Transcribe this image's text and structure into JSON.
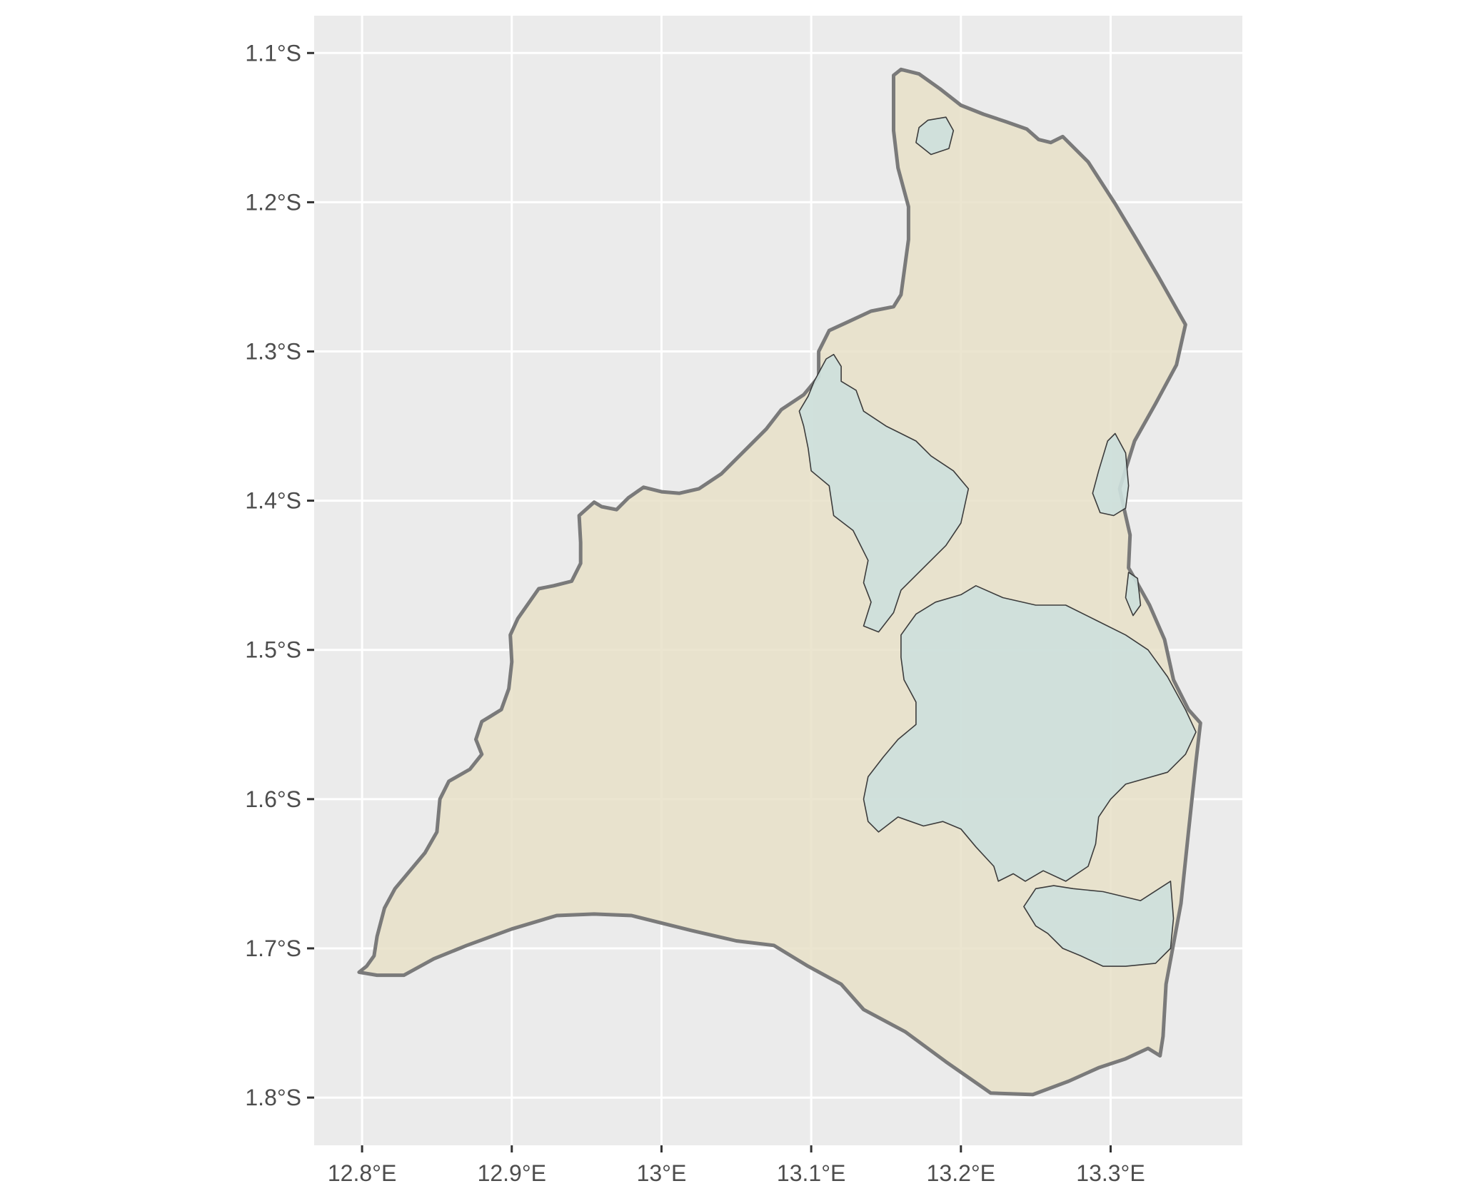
{
  "chart_data": {
    "type": "map",
    "title": "",
    "xlabel": "",
    "ylabel": "",
    "xlim": [
      12.768,
      13.388
    ],
    "ylim": [
      -1.832,
      -1.075
    ],
    "x_ticks": [
      {
        "value": 12.8,
        "label": "12.8°E"
      },
      {
        "value": 12.9,
        "label": "12.9°E"
      },
      {
        "value": 13.0,
        "label": "13°E"
      },
      {
        "value": 13.1,
        "label": "13.1°E"
      },
      {
        "value": 13.2,
        "label": "13.2°E"
      },
      {
        "value": 13.3,
        "label": "13.3°E"
      }
    ],
    "y_ticks": [
      {
        "value": -1.1,
        "label": "1.1°S"
      },
      {
        "value": -1.2,
        "label": "1.2°S"
      },
      {
        "value": -1.3,
        "label": "1.3°S"
      },
      {
        "value": -1.4,
        "label": "1.4°S"
      },
      {
        "value": -1.5,
        "label": "1.5°S"
      },
      {
        "value": -1.6,
        "label": "1.6°S"
      },
      {
        "value": -1.7,
        "label": "1.7°S"
      },
      {
        "value": -1.8,
        "label": "1.8°S"
      }
    ],
    "grid": true,
    "colors": {
      "panel_background": "#ebebeb",
      "grid": "#ffffff",
      "region_fill": "#e8e1c8",
      "region_outline": "#7a7a7a",
      "water_fill": "#cde0dd",
      "water_outline": "#3c3c3c",
      "tick_label": "#4d4d4d"
    },
    "layers": [
      {
        "name": "region-outline",
        "kind": "region",
        "coords": [
          [
            13.16,
            -1.111
          ],
          [
            13.172,
            -1.114
          ],
          [
            13.186,
            -1.124
          ],
          [
            13.2,
            -1.135
          ],
          [
            13.215,
            -1.141
          ],
          [
            13.23,
            -1.146
          ],
          [
            13.244,
            -1.151
          ],
          [
            13.252,
            -1.158
          ],
          [
            13.26,
            -1.16
          ],
          [
            13.268,
            -1.156
          ],
          [
            13.285,
            -1.173
          ],
          [
            13.303,
            -1.201
          ],
          [
            13.318,
            -1.226
          ],
          [
            13.332,
            -1.25
          ],
          [
            13.35,
            -1.282
          ],
          [
            13.344,
            -1.309
          ],
          [
            13.33,
            -1.335
          ],
          [
            13.316,
            -1.36
          ],
          [
            13.306,
            -1.392
          ],
          [
            13.31,
            -1.41
          ],
          [
            13.313,
            -1.423
          ],
          [
            13.312,
            -1.445
          ],
          [
            13.316,
            -1.452
          ],
          [
            13.326,
            -1.47
          ],
          [
            13.336,
            -1.493
          ],
          [
            13.342,
            -1.52
          ],
          [
            13.352,
            -1.54
          ],
          [
            13.36,
            -1.549
          ],
          [
            13.357,
            -1.575
          ],
          [
            13.352,
            -1.622
          ],
          [
            13.347,
            -1.67
          ],
          [
            13.337,
            -1.724
          ],
          [
            13.335,
            -1.759
          ],
          [
            13.333,
            -1.772
          ],
          [
            13.325,
            -1.767
          ],
          [
            13.31,
            -1.774
          ],
          [
            13.292,
            -1.78
          ],
          [
            13.272,
            -1.789
          ],
          [
            13.248,
            -1.798
          ],
          [
            13.22,
            -1.797
          ],
          [
            13.19,
            -1.776
          ],
          [
            13.163,
            -1.756
          ],
          [
            13.135,
            -1.741
          ],
          [
            13.12,
            -1.724
          ],
          [
            13.098,
            -1.712
          ],
          [
            13.075,
            -1.698
          ],
          [
            13.05,
            -1.695
          ],
          [
            13.02,
            -1.688
          ],
          [
            12.98,
            -1.678
          ],
          [
            12.955,
            -1.677
          ],
          [
            12.93,
            -1.678
          ],
          [
            12.9,
            -1.687
          ],
          [
            12.87,
            -1.698
          ],
          [
            12.848,
            -1.707
          ],
          [
            12.828,
            -1.718
          ],
          [
            12.81,
            -1.718
          ],
          [
            12.798,
            -1.716
          ],
          [
            12.803,
            -1.712
          ],
          [
            12.808,
            -1.705
          ],
          [
            12.81,
            -1.692
          ],
          [
            12.815,
            -1.673
          ],
          [
            12.822,
            -1.66
          ],
          [
            12.832,
            -1.648
          ],
          [
            12.842,
            -1.636
          ],
          [
            12.85,
            -1.622
          ],
          [
            12.852,
            -1.6
          ],
          [
            12.858,
            -1.588
          ],
          [
            12.872,
            -1.58
          ],
          [
            12.88,
            -1.57
          ],
          [
            12.876,
            -1.56
          ],
          [
            12.88,
            -1.548
          ],
          [
            12.885,
            -1.545
          ],
          [
            12.893,
            -1.54
          ],
          [
            12.898,
            -1.526
          ],
          [
            12.9,
            -1.508
          ],
          [
            12.899,
            -1.49
          ],
          [
            12.904,
            -1.479
          ],
          [
            12.918,
            -1.459
          ],
          [
            12.928,
            -1.457
          ],
          [
            12.94,
            -1.454
          ],
          [
            12.946,
            -1.442
          ],
          [
            12.946,
            -1.428
          ],
          [
            12.945,
            -1.41
          ],
          [
            12.955,
            -1.401
          ],
          [
            12.96,
            -1.404
          ],
          [
            12.97,
            -1.406
          ],
          [
            12.978,
            -1.398
          ],
          [
            12.988,
            -1.391
          ],
          [
            13.0,
            -1.394
          ],
          [
            13.012,
            -1.395
          ],
          [
            13.025,
            -1.392
          ],
          [
            13.04,
            -1.382
          ],
          [
            13.058,
            -1.364
          ],
          [
            13.07,
            -1.352
          ],
          [
            13.08,
            -1.339
          ],
          [
            13.095,
            -1.329
          ],
          [
            13.105,
            -1.317
          ],
          [
            13.105,
            -1.3
          ],
          [
            13.112,
            -1.286
          ],
          [
            13.125,
            -1.28
          ],
          [
            13.14,
            -1.273
          ],
          [
            13.155,
            -1.27
          ],
          [
            13.16,
            -1.262
          ],
          [
            13.165,
            -1.225
          ],
          [
            13.165,
            -1.203
          ],
          [
            13.158,
            -1.177
          ],
          [
            13.155,
            -1.152
          ],
          [
            13.155,
            -1.13
          ],
          [
            13.155,
            -1.115
          ]
        ]
      },
      {
        "name": "water-main",
        "kind": "water",
        "coords": [
          [
            13.16,
            -1.49
          ],
          [
            13.17,
            -1.476
          ],
          [
            13.183,
            -1.468
          ],
          [
            13.2,
            -1.463
          ],
          [
            13.21,
            -1.457
          ],
          [
            13.228,
            -1.465
          ],
          [
            13.25,
            -1.47
          ],
          [
            13.27,
            -1.47
          ],
          [
            13.29,
            -1.48
          ],
          [
            13.31,
            -1.49
          ],
          [
            13.325,
            -1.5
          ],
          [
            13.338,
            -1.518
          ],
          [
            13.35,
            -1.54
          ],
          [
            13.357,
            -1.555
          ],
          [
            13.35,
            -1.57
          ],
          [
            13.338,
            -1.582
          ],
          [
            13.31,
            -1.59
          ],
          [
            13.3,
            -1.6
          ],
          [
            13.292,
            -1.612
          ],
          [
            13.29,
            -1.63
          ],
          [
            13.285,
            -1.645
          ],
          [
            13.27,
            -1.655
          ],
          [
            13.255,
            -1.648
          ],
          [
            13.243,
            -1.655
          ],
          [
            13.235,
            -1.65
          ],
          [
            13.225,
            -1.655
          ],
          [
            13.222,
            -1.645
          ],
          [
            13.21,
            -1.632
          ],
          [
            13.2,
            -1.62
          ],
          [
            13.188,
            -1.615
          ],
          [
            13.175,
            -1.618
          ],
          [
            13.158,
            -1.612
          ],
          [
            13.145,
            -1.622
          ],
          [
            13.138,
            -1.615
          ],
          [
            13.135,
            -1.6
          ],
          [
            13.138,
            -1.585
          ],
          [
            13.148,
            -1.572
          ],
          [
            13.158,
            -1.56
          ],
          [
            13.17,
            -1.55
          ],
          [
            13.17,
            -1.535
          ],
          [
            13.162,
            -1.52
          ],
          [
            13.16,
            -1.505
          ]
        ]
      },
      {
        "name": "water-northwest",
        "kind": "water",
        "coords": [
          [
            13.11,
            -1.305
          ],
          [
            13.115,
            -1.302
          ],
          [
            13.12,
            -1.31
          ],
          [
            13.12,
            -1.32
          ],
          [
            13.13,
            -1.326
          ],
          [
            13.135,
            -1.34
          ],
          [
            13.15,
            -1.35
          ],
          [
            13.16,
            -1.355
          ],
          [
            13.17,
            -1.36
          ],
          [
            13.18,
            -1.37
          ],
          [
            13.195,
            -1.38
          ],
          [
            13.205,
            -1.392
          ],
          [
            13.2,
            -1.415
          ],
          [
            13.19,
            -1.43
          ],
          [
            13.175,
            -1.445
          ],
          [
            13.16,
            -1.46
          ],
          [
            13.155,
            -1.475
          ],
          [
            13.145,
            -1.488
          ],
          [
            13.135,
            -1.484
          ],
          [
            13.14,
            -1.468
          ],
          [
            13.135,
            -1.455
          ],
          [
            13.138,
            -1.44
          ],
          [
            13.128,
            -1.42
          ],
          [
            13.115,
            -1.41
          ],
          [
            13.112,
            -1.39
          ],
          [
            13.1,
            -1.38
          ],
          [
            13.098,
            -1.365
          ],
          [
            13.095,
            -1.35
          ],
          [
            13.092,
            -1.34
          ],
          [
            13.098,
            -1.33
          ],
          [
            13.102,
            -1.32
          ]
        ]
      },
      {
        "name": "water-southeast",
        "kind": "water",
        "coords": [
          [
            13.275,
            -1.66
          ],
          [
            13.295,
            -1.662
          ],
          [
            13.32,
            -1.668
          ],
          [
            13.34,
            -1.655
          ],
          [
            13.342,
            -1.68
          ],
          [
            13.34,
            -1.7
          ],
          [
            13.33,
            -1.71
          ],
          [
            13.31,
            -1.712
          ],
          [
            13.295,
            -1.712
          ],
          [
            13.28,
            -1.705
          ],
          [
            13.268,
            -1.7
          ],
          [
            13.258,
            -1.69
          ],
          [
            13.25,
            -1.685
          ],
          [
            13.242,
            -1.672
          ],
          [
            13.25,
            -1.66
          ],
          [
            13.262,
            -1.658
          ]
        ]
      },
      {
        "name": "water-east-strip",
        "kind": "water",
        "coords": [
          [
            13.298,
            -1.36
          ],
          [
            13.303,
            -1.355
          ],
          [
            13.31,
            -1.368
          ],
          [
            13.312,
            -1.39
          ],
          [
            13.31,
            -1.405
          ],
          [
            13.302,
            -1.41
          ],
          [
            13.293,
            -1.408
          ],
          [
            13.288,
            -1.395
          ],
          [
            13.292,
            -1.38
          ]
        ]
      },
      {
        "name": "water-north",
        "kind": "water",
        "coords": [
          [
            13.178,
            -1.145
          ],
          [
            13.19,
            -1.143
          ],
          [
            13.195,
            -1.152
          ],
          [
            13.192,
            -1.164
          ],
          [
            13.18,
            -1.168
          ],
          [
            13.17,
            -1.16
          ],
          [
            13.172,
            -1.15
          ]
        ]
      },
      {
        "name": "water-east-small",
        "kind": "water",
        "coords": [
          [
            13.312,
            -1.448
          ],
          [
            13.318,
            -1.452
          ],
          [
            13.32,
            -1.47
          ],
          [
            13.315,
            -1.477
          ],
          [
            13.31,
            -1.465
          ]
        ]
      }
    ]
  }
}
